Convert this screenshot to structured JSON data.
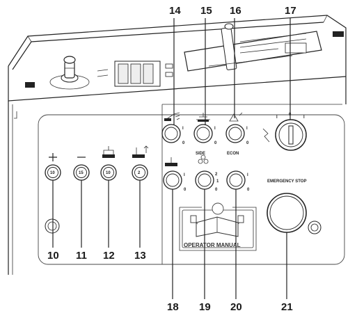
{
  "callouts": {
    "n14": "14",
    "n15": "15",
    "n16": "16",
    "n17": "17",
    "n10": "10",
    "n11": "11",
    "n12": "12",
    "n13": "13",
    "n18": "18",
    "n19": "19",
    "n20": "20",
    "n21": "21"
  },
  "panel": {
    "side_label": "SIDE",
    "econ_label": "ECON",
    "emergency_stop_label": "EMERGENCY STOP",
    "operator_manual_label": "OPERATOR MANUAL",
    "key_positions": [
      "I",
      "0",
      "I"
    ]
  },
  "buttons": {
    "b10": "10",
    "b11": "15",
    "b12": "10",
    "b13": "2"
  },
  "switch_marks": {
    "upper": "I",
    "lower": "0",
    "three_way": [
      "2",
      "1",
      "0"
    ]
  },
  "icons": [
    "joystick-icon",
    "key-switch-icon",
    "spray-icon",
    "broom-lift-icon",
    "econ-icon",
    "plus-icon",
    "minus-icon",
    "brush-icon",
    "side-brush-icon",
    "book-icon",
    "emergency-stop-icon"
  ]
}
